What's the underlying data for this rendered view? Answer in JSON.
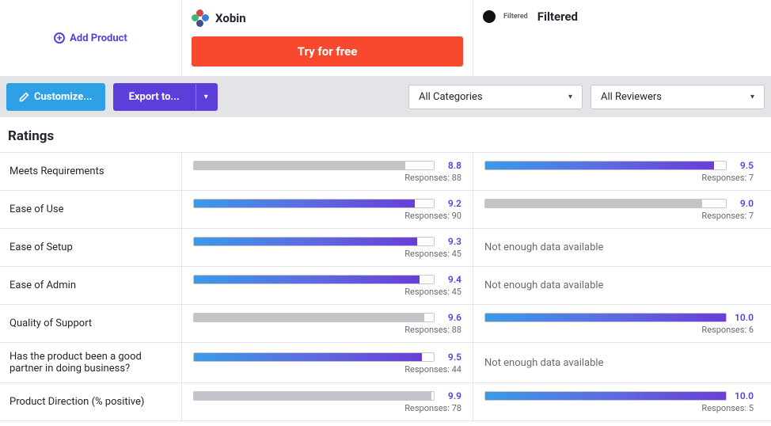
{
  "header": {
    "add_product": "Add Product",
    "products": [
      {
        "name": "Xobin",
        "cta": "Try for free"
      },
      {
        "name": "Filtered",
        "small": "Filtered"
      }
    ]
  },
  "toolbar": {
    "customize": "Customize...",
    "export": "Export to...",
    "dropdown1": "All Categories",
    "dropdown2": "All Reviewers"
  },
  "section_title": "Ratings",
  "colors": {
    "accent": "#5d3eda",
    "cta": "#f8492f",
    "customize": "#2ea0e6",
    "grad_start": "#3a9be8",
    "grad_end": "#6a3ed6",
    "grey_bar": "#c3c3c9"
  },
  "max_score": 10,
  "rows": [
    {
      "label": "Meets Requirements",
      "p1": {
        "score": "8.8",
        "pct": 88,
        "responses": "Responses: 88",
        "style": "grey"
      },
      "p2": {
        "score": "9.5",
        "pct": 95,
        "responses": "Responses: 7",
        "style": "grad"
      }
    },
    {
      "label": "Ease of Use",
      "p1": {
        "score": "9.2",
        "pct": 92,
        "responses": "Responses: 90",
        "style": "grad"
      },
      "p2": {
        "score": "9.0",
        "pct": 90,
        "responses": "Responses: 7",
        "style": "grey"
      }
    },
    {
      "label": "Ease of Setup",
      "p1": {
        "score": "9.3",
        "pct": 93,
        "responses": "Responses: 45",
        "style": "grad"
      },
      "p2": {
        "na": "Not enough data available"
      }
    },
    {
      "label": "Ease of Admin",
      "p1": {
        "score": "9.4",
        "pct": 94,
        "responses": "Responses: 45",
        "style": "grad"
      },
      "p2": {
        "na": "Not enough data available"
      }
    },
    {
      "label": "Quality of Support",
      "p1": {
        "score": "9.6",
        "pct": 96,
        "responses": "Responses: 88",
        "style": "grey"
      },
      "p2": {
        "score": "10.0",
        "pct": 100,
        "responses": "Responses: 6",
        "style": "grad"
      }
    },
    {
      "label": "Has the product been a good partner in doing business?",
      "p1": {
        "score": "9.5",
        "pct": 95,
        "responses": "Responses: 44",
        "style": "grad"
      },
      "p2": {
        "na": "Not enough data available"
      }
    },
    {
      "label": "Product Direction (% positive)",
      "p1": {
        "score": "9.9",
        "pct": 99,
        "responses": "Responses: 78",
        "style": "grey"
      },
      "p2": {
        "score": "10.0",
        "pct": 100,
        "responses": "Responses: 5",
        "style": "grad"
      }
    }
  ]
}
